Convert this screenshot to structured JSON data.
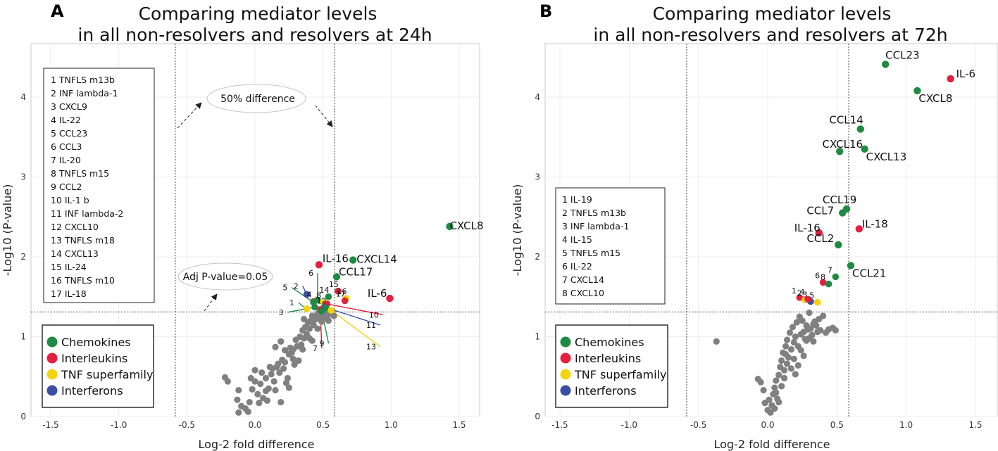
{
  "colors": {
    "chemokines": "#1f8a42",
    "interleukins": "#e3203f",
    "tnf": "#f5d30f",
    "interferons": "#3b4ea5",
    "gray": "#808080",
    "frame": "#c8c8c8"
  },
  "legend": [
    {
      "key": "chemokines",
      "label": "Chemokines",
      "color": "#1f8a42"
    },
    {
      "key": "interleukins",
      "label": "Interleukins",
      "color": "#e3203f"
    },
    {
      "key": "tnf",
      "label": "TNF superfamily",
      "color": "#f5d30f"
    },
    {
      "key": "interferons",
      "label": "Interferons",
      "color": "#3b4ea5"
    }
  ],
  "chart_data": [
    {
      "type": "scatter",
      "panel_letter": "A",
      "title_line1": "Comparing mediator levels",
      "title_line2": "in all non-resolvers and resolvers at 24h",
      "xlabel": "Log-2 fold difference",
      "ylabel": "-Log10 (P-value)",
      "xlim": [
        -1.75,
        1.75
      ],
      "ylim": [
        0,
        4.7
      ],
      "xticks": [
        -1.5,
        -1.0,
        -0.5,
        0.0,
        0.5,
        1.0,
        1.5
      ],
      "xtick_labels": [
        "-1.5",
        "-1.0",
        "-0.5",
        "0.0",
        "0.5",
        "1.0",
        "1.5"
      ],
      "yticks": [
        0,
        1,
        2,
        3,
        4
      ],
      "ytick_labels": [
        "0",
        "1",
        "2",
        "3",
        "4"
      ],
      "threshold_y": 1.31,
      "threshold_x": [
        -0.585,
        0.585
      ],
      "annotation_50pct": "50% difference",
      "annotation_adjp": "Adj P-value=0.05",
      "key_list": [
        "1 TNFLS m13b",
        "2 INF lambda-1",
        "3 CXCL9",
        "4 IL-22",
        "5 CCL23",
        "6 CCL3",
        "7 IL-20",
        "8 TNFLS m15",
        "9 CCL2",
        "10 IL-1 b",
        "11 INF lambda-2",
        "12 CXCL10",
        "13 TNFLS m18",
        "14 CXCL13",
        "15 IL-24",
        "16 TNFLS m10",
        "17 IL-18"
      ],
      "labeled_points": [
        {
          "x": 1.43,
          "y": 2.38,
          "cat": "chemokines",
          "label": "CXCL8"
        },
        {
          "x": 0.72,
          "y": 1.96,
          "cat": "chemokines",
          "label": "CXCL14"
        },
        {
          "x": 0.47,
          "y": 1.9,
          "cat": "interleukins",
          "label": "IL-16"
        },
        {
          "x": 0.6,
          "y": 1.75,
          "cat": "chemokines",
          "label": "CCL17"
        },
        {
          "x": 0.99,
          "y": 1.48,
          "cat": "interleukins",
          "label": "IL-6"
        }
      ],
      "numbered_points": [
        {
          "x": 0.38,
          "y": 1.35,
          "cat": "tnf",
          "num": "1"
        },
        {
          "x": 0.38,
          "y": 1.53,
          "cat": "interferons",
          "num": "2"
        },
        {
          "x": 0.44,
          "y": 1.37,
          "cat": "chemokines",
          "num": "3"
        },
        {
          "x": 0.43,
          "y": 1.44,
          "cat": "interleukins",
          "num": "4"
        },
        {
          "x": 0.43,
          "y": 1.43,
          "cat": "chemokines",
          "num": "5"
        },
        {
          "x": 0.46,
          "y": 1.46,
          "cat": "chemokines",
          "num": "6"
        },
        {
          "x": 0.48,
          "y": 1.34,
          "cat": "interleukins",
          "num": "7"
        },
        {
          "x": 0.5,
          "y": 1.43,
          "cat": "tnf",
          "num": "8"
        },
        {
          "x": 0.49,
          "y": 1.32,
          "cat": "chemokines",
          "num": "9"
        },
        {
          "x": 0.53,
          "y": 1.41,
          "cat": "interleukins",
          "num": "10"
        },
        {
          "x": 0.51,
          "y": 1.37,
          "cat": "interferons",
          "num": "11"
        },
        {
          "x": 0.52,
          "y": 1.36,
          "cat": "chemokines",
          "num": "12"
        },
        {
          "x": 0.56,
          "y": 1.33,
          "cat": "tnf",
          "num": "13"
        },
        {
          "x": 0.54,
          "y": 1.5,
          "cat": "chemokines",
          "num": "14"
        },
        {
          "x": 0.61,
          "y": 1.57,
          "cat": "interleukins",
          "num": "15"
        },
        {
          "x": 0.67,
          "y": 1.48,
          "cat": "tnf",
          "num": "16"
        },
        {
          "x": 0.66,
          "y": 1.45,
          "cat": "interleukins",
          "num": "17"
        }
      ],
      "gray_points": [
        [
          -0.22,
          0.49
        ],
        [
          -0.2,
          0.44
        ],
        [
          -0.12,
          0.33
        ],
        [
          -0.13,
          0.21
        ],
        [
          -0.12,
          0.05
        ],
        [
          -0.1,
          0.13
        ],
        [
          -0.07,
          0.1
        ],
        [
          -0.05,
          0.06
        ],
        [
          -0.04,
          0.18
        ],
        [
          -0.02,
          0.34
        ],
        [
          0.0,
          0.44
        ],
        [
          0.02,
          0.28
        ],
        [
          0.03,
          0.17
        ],
        [
          0.04,
          0.41
        ],
        [
          0.06,
          0.23
        ],
        [
          0.05,
          0.55
        ],
        [
          0.08,
          0.48
        ],
        [
          0.09,
          0.2
        ],
        [
          0.1,
          0.35
        ],
        [
          0.12,
          0.53
        ],
        [
          0.13,
          0.6
        ],
        [
          0.14,
          0.44
        ],
        [
          0.15,
          0.33
        ],
        [
          0.16,
          0.62
        ],
        [
          0.17,
          0.66
        ],
        [
          0.18,
          0.55
        ],
        [
          0.19,
          0.18
        ],
        [
          0.2,
          0.71
        ],
        [
          0.21,
          0.6
        ],
        [
          0.22,
          0.83
        ],
        [
          0.23,
          0.42
        ],
        [
          0.24,
          0.48
        ],
        [
          0.25,
          0.78
        ],
        [
          0.26,
          0.86
        ],
        [
          0.27,
          0.8
        ],
        [
          0.28,
          0.72
        ],
        [
          0.29,
          0.65
        ],
        [
          0.3,
          0.96
        ],
        [
          0.31,
          0.88
        ],
        [
          0.32,
          0.7
        ],
        [
          0.33,
          1.0
        ],
        [
          0.34,
          0.9
        ],
        [
          0.35,
          1.08
        ],
        [
          0.36,
          0.98
        ],
        [
          0.37,
          1.12
        ],
        [
          0.38,
          1.03
        ],
        [
          0.39,
          1.18
        ],
        [
          0.4,
          1.1
        ],
        [
          0.41,
          1.2
        ],
        [
          0.42,
          0.95
        ],
        [
          0.43,
          1.15
        ],
        [
          0.44,
          1.24
        ],
        [
          0.45,
          1.22
        ],
        [
          0.46,
          1.1
        ],
        [
          0.47,
          1.27
        ],
        [
          0.48,
          1.26
        ],
        [
          0.49,
          1.19
        ],
        [
          0.5,
          1.3
        ],
        [
          0.51,
          1.23
        ],
        [
          0.52,
          1.29
        ],
        [
          0.53,
          1.25
        ],
        [
          0.54,
          1.2
        ],
        [
          0.55,
          1.28
        ],
        [
          0.46,
          1.29
        ],
        [
          0.4,
          0.98
        ],
        [
          0.35,
          0.84
        ],
        [
          0.28,
          0.84
        ],
        [
          0.22,
          0.68
        ],
        [
          0.11,
          0.62
        ],
        [
          0.0,
          0.58
        ],
        [
          -0.03,
          0.48
        ],
        [
          0.08,
          0.32
        ],
        [
          0.25,
          0.36
        ],
        [
          0.15,
          0.87
        ],
        [
          0.19,
          0.94
        ],
        [
          0.36,
          1.22
        ],
        [
          0.58,
          1.26
        ],
        [
          0.42,
          1.26
        ]
      ],
      "pointer_lines": [
        {
          "num": "1",
          "lx": 0.36,
          "ly": 1.37,
          "color": "#1f8a42",
          "label_x": 0.3,
          "label_y": 1.39
        },
        {
          "num": "2",
          "lx": 0.38,
          "ly": 1.53,
          "color": "#3b4ea5",
          "label_x": 0.33,
          "label_y": 1.6
        },
        {
          "num": "3",
          "lx": 0.44,
          "ly": 1.37,
          "color": "#1f8a42",
          "label_x": 0.22,
          "label_y": 1.27
        },
        {
          "num": "5",
          "lx": 0.43,
          "ly": 1.43,
          "color": "#1f8a42",
          "label_x": 0.25,
          "label_y": 1.58
        },
        {
          "num": "6",
          "lx": 0.46,
          "ly": 1.46,
          "color": "#1f8a42",
          "label_x": 0.44,
          "label_y": 1.76
        },
        {
          "num": "7",
          "lx": 0.48,
          "ly": 1.34,
          "color": "#e3203f",
          "label_x": 0.47,
          "label_y": 0.82
        },
        {
          "num": "9",
          "lx": 0.49,
          "ly": 1.32,
          "color": "#1f8a42",
          "label_x": 0.52,
          "label_y": 0.88
        },
        {
          "num": "10",
          "lx": 0.53,
          "ly": 1.41,
          "color": "#e3203f",
          "label_x": 0.92,
          "label_y": 1.24
        },
        {
          "num": "11",
          "lx": 0.51,
          "ly": 1.37,
          "color": "#3b4ea5",
          "label_x": 0.9,
          "label_y": 1.11
        },
        {
          "num": "13",
          "lx": 0.56,
          "ly": 1.33,
          "color": "#f5d30f",
          "label_x": 0.9,
          "label_y": 0.84
        }
      ]
    },
    {
      "type": "scatter",
      "panel_letter": "B",
      "title_line1": "Comparing mediator levels",
      "title_line2": "in all non-resolvers and resolvers at 72h",
      "xlabel": "Log-2 fold difference",
      "ylabel": "-Log10 (P-value)",
      "xlim": [
        -1.75,
        1.75
      ],
      "ylim": [
        0,
        4.7
      ],
      "xticks": [
        -1.5,
        -1.0,
        -0.5,
        0.0,
        0.5,
        1.0,
        1.5
      ],
      "xtick_labels": [
        "-1.5",
        "-1.0",
        "-0.5",
        "0.0",
        "0.5",
        "1.0",
        "1.5"
      ],
      "yticks": [
        0,
        1,
        2,
        3,
        4
      ],
      "ytick_labels": [
        "0",
        "1",
        "2",
        "3",
        "4"
      ],
      "threshold_y": 1.31,
      "threshold_x": [
        -0.585,
        0.585
      ],
      "key_list": [
        "1 IL-19",
        "2 TNFLS m13b",
        "3 INF lambda-1",
        "4 IL-15",
        "5 TNFLS m15",
        "6 IL-22",
        "7 CXCL14",
        "8 CXCL10"
      ],
      "labeled_points": [
        {
          "x": 0.85,
          "y": 4.41,
          "cat": "chemokines",
          "label": "CCL23"
        },
        {
          "x": 1.32,
          "y": 4.23,
          "cat": "interleukins",
          "label": "IL-6"
        },
        {
          "x": 1.08,
          "y": 4.08,
          "cat": "chemokines",
          "label": "CXCL8"
        },
        {
          "x": 0.67,
          "y": 3.6,
          "cat": "chemokines",
          "label": "CCL14"
        },
        {
          "x": 0.52,
          "y": 3.32,
          "cat": "chemokines",
          "label": "CXCL16"
        },
        {
          "x": 0.7,
          "y": 3.35,
          "cat": "chemokines",
          "label": "CXCL13"
        },
        {
          "x": 0.57,
          "y": 2.6,
          "cat": "chemokines",
          "label": "CCL19"
        },
        {
          "x": 0.54,
          "y": 2.55,
          "cat": "chemokines",
          "label": "CCL7"
        },
        {
          "x": 0.37,
          "y": 2.3,
          "cat": "interleukins",
          "label": "IL-16"
        },
        {
          "x": 0.66,
          "y": 2.35,
          "cat": "interleukins",
          "label": "IL-18"
        },
        {
          "x": 0.51,
          "y": 2.15,
          "cat": "chemokines",
          "label": "CCL2"
        },
        {
          "x": 0.6,
          "y": 1.89,
          "cat": "chemokines",
          "label": "CCL21"
        }
      ],
      "numbered_points": [
        {
          "x": 0.23,
          "y": 1.49,
          "cat": "interleukins",
          "num": "1"
        },
        {
          "x": 0.27,
          "y": 1.46,
          "cat": "tnf",
          "num": "2"
        },
        {
          "x": 0.31,
          "y": 1.44,
          "cat": "interferons",
          "num": "3"
        },
        {
          "x": 0.29,
          "y": 1.47,
          "cat": "interleukins",
          "num": "4"
        },
        {
          "x": 0.36,
          "y": 1.43,
          "cat": "tnf",
          "num": "5"
        },
        {
          "x": 0.4,
          "y": 1.68,
          "cat": "interleukins",
          "num": "6"
        },
        {
          "x": 0.49,
          "y": 1.75,
          "cat": "chemokines",
          "num": "7"
        },
        {
          "x": 0.44,
          "y": 1.66,
          "cat": "chemokines",
          "num": "8"
        }
      ],
      "gray_points": [
        [
          -0.37,
          0.94
        ],
        [
          -0.07,
          0.47
        ],
        [
          -0.05,
          0.43
        ],
        [
          -0.03,
          0.33
        ],
        [
          -0.02,
          0.17
        ],
        [
          0.0,
          0.08
        ],
        [
          0.01,
          0.21
        ],
        [
          0.02,
          0.05
        ],
        [
          0.03,
          0.14
        ],
        [
          0.04,
          0.28
        ],
        [
          0.05,
          0.36
        ],
        [
          0.06,
          0.45
        ],
        [
          0.07,
          0.22
        ],
        [
          0.08,
          0.52
        ],
        [
          0.09,
          0.62
        ],
        [
          0.1,
          0.7
        ],
        [
          0.11,
          0.8
        ],
        [
          0.12,
          0.58
        ],
        [
          0.13,
          0.88
        ],
        [
          0.14,
          0.96
        ],
        [
          0.15,
          0.74
        ],
        [
          0.16,
          1.05
        ],
        [
          0.17,
          0.84
        ],
        [
          0.18,
          1.12
        ],
        [
          0.19,
          0.93
        ],
        [
          0.2,
          1.0
        ],
        [
          0.21,
          1.18
        ],
        [
          0.22,
          0.88
        ],
        [
          0.23,
          1.25
        ],
        [
          0.24,
          1.03
        ],
        [
          0.25,
          1.2
        ],
        [
          0.26,
          1.06
        ],
        [
          0.27,
          0.97
        ],
        [
          0.28,
          1.14
        ],
        [
          0.29,
          1.09
        ],
        [
          0.3,
          1.3
        ],
        [
          0.31,
          1.1
        ],
        [
          0.32,
          1.02
        ],
        [
          0.33,
          1.16
        ],
        [
          0.34,
          1.19
        ],
        [
          0.35,
          1.14
        ],
        [
          0.36,
          1.06
        ],
        [
          0.37,
          1.22
        ],
        [
          0.38,
          1.08
        ],
        [
          0.4,
          1.26
        ],
        [
          0.42,
          1.05
        ],
        [
          0.44,
          1.09
        ],
        [
          0.47,
          1.11
        ],
        [
          0.49,
          1.08
        ],
        [
          0.1,
          0.38
        ],
        [
          0.08,
          0.18
        ],
        [
          0.14,
          0.66
        ],
        [
          0.19,
          0.72
        ],
        [
          0.22,
          0.64
        ],
        [
          0.17,
          0.6
        ],
        [
          0.12,
          0.48
        ],
        [
          0.24,
          0.83
        ],
        [
          0.26,
          0.76
        ],
        [
          0.05,
          0.1
        ],
        [
          0.06,
          0.3
        ],
        [
          0.2,
          0.53
        ],
        [
          0.13,
          0.78
        ],
        [
          0.28,
          0.95
        ],
        [
          0.3,
          0.98
        ],
        [
          0.33,
          0.94
        ]
      ]
    }
  ]
}
